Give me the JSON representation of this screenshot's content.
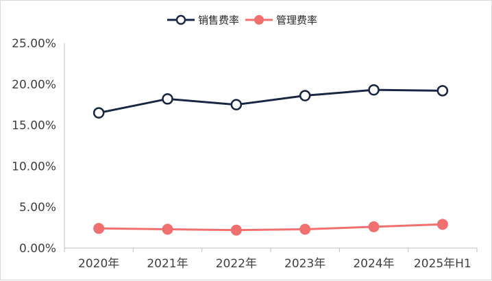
{
  "chart_data": {
    "type": "line",
    "categories": [
      "2020年",
      "2021年",
      "2022年",
      "2023年",
      "2024年",
      "2025年H1"
    ],
    "series": [
      {
        "name": "销售费率",
        "values": [
          16.5,
          18.2,
          17.5,
          18.6,
          19.3,
          19.2
        ],
        "color": "#1a2744",
        "marker": "hollow-circle"
      },
      {
        "name": "管理费率",
        "values": [
          2.4,
          2.3,
          2.2,
          2.3,
          2.6,
          2.9
        ],
        "color": "#f07070",
        "marker": "filled-circle"
      }
    ],
    "y_ticks": [
      "0.00%",
      "5.00%",
      "10.00%",
      "15.00%",
      "20.00%",
      "25.00%"
    ],
    "ylim": [
      0,
      25
    ],
    "y_format": "percent-2dp",
    "grid": false,
    "legend_position": "top-center"
  }
}
